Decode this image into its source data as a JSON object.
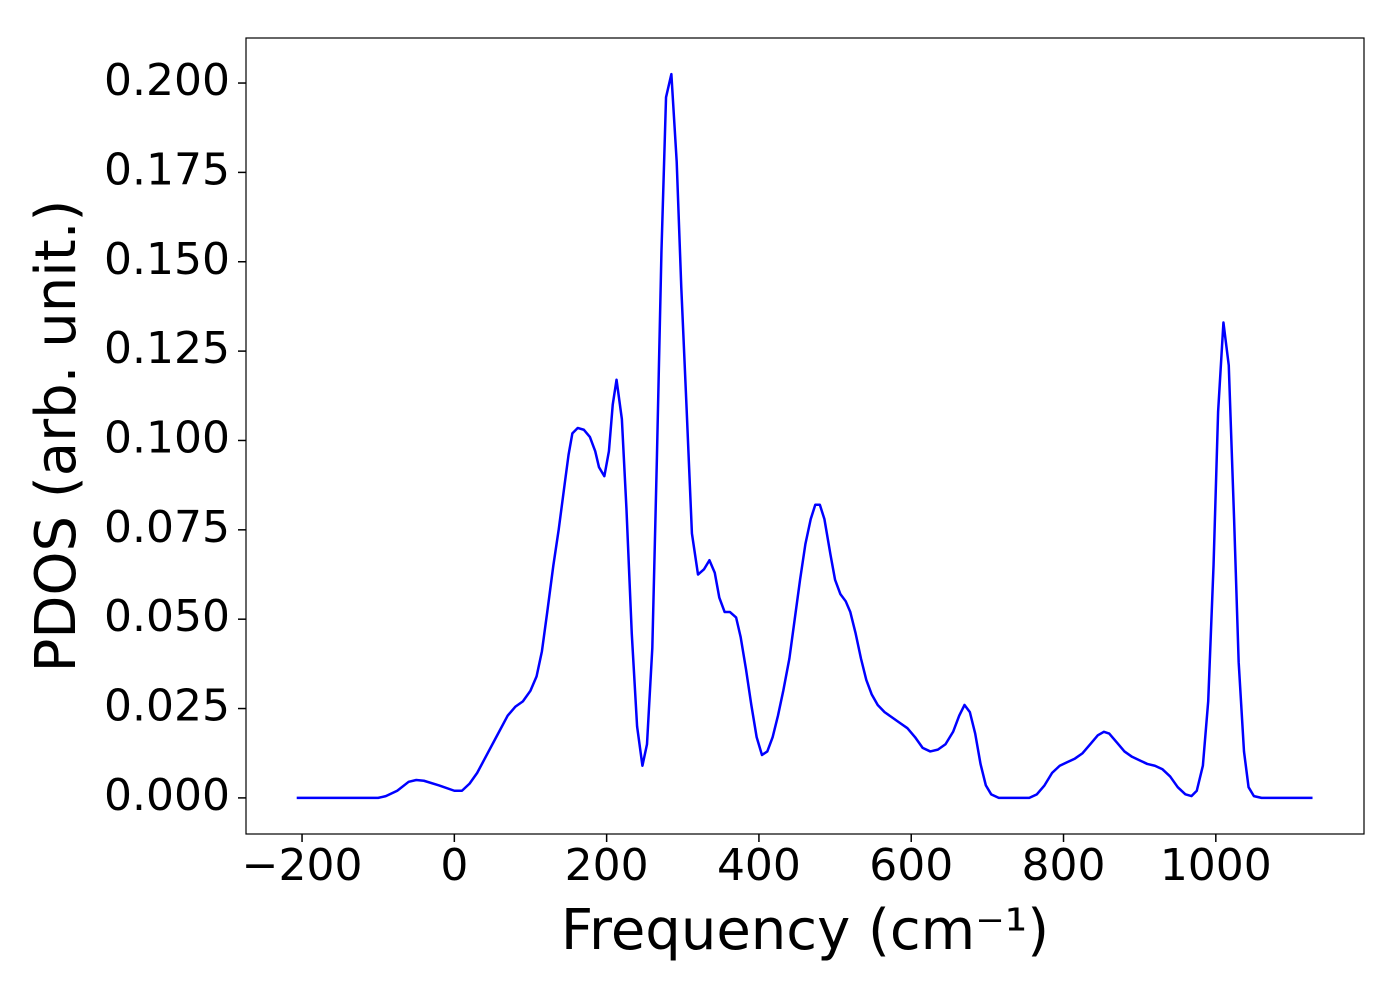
{
  "chart_data": {
    "type": "line",
    "xlabel": "Frequency (cm⁻¹)",
    "ylabel": "PDOS (arb. unit.)",
    "x": [
      -207,
      -100,
      -90,
      -75,
      -60,
      -50,
      -40,
      -20,
      0,
      10,
      20,
      30,
      40,
      55,
      70,
      80,
      90,
      100,
      108,
      115,
      122,
      130,
      137,
      145,
      150,
      155,
      162,
      170,
      178,
      185,
      190,
      197,
      203,
      208,
      213,
      220,
      226,
      233,
      240,
      247,
      253,
      260,
      266,
      272,
      278,
      285,
      292,
      298,
      305,
      312,
      320,
      328,
      335,
      342,
      348,
      355,
      362,
      370,
      376,
      383,
      390,
      397,
      404,
      411,
      418,
      425,
      432,
      440,
      447,
      454,
      461,
      468,
      474,
      480,
      486,
      494,
      500,
      507,
      514,
      520,
      527,
      534,
      541,
      548,
      556,
      565,
      575,
      585,
      595,
      605,
      615,
      625,
      635,
      645,
      655,
      663,
      670,
      677,
      684,
      691,
      698,
      705,
      715,
      755,
      765,
      775,
      785,
      795,
      805,
      815,
      825,
      835,
      845,
      853,
      860,
      870,
      880,
      890,
      900,
      910,
      920,
      930,
      940,
      950,
      960,
      968,
      975,
      983,
      990,
      997,
      1003,
      1010,
      1017,
      1024,
      1030,
      1037,
      1043,
      1050,
      1060,
      1127
    ],
    "series": [
      {
        "name": "PDOS",
        "color": "#0000ff",
        "values": [
          0,
          0,
          0.0005,
          0.002,
          0.0045,
          0.005,
          0.0048,
          0.0035,
          0.002,
          0.002,
          0.004,
          0.007,
          0.011,
          0.017,
          0.023,
          0.0255,
          0.027,
          0.03,
          0.034,
          0.041,
          0.052,
          0.065,
          0.075,
          0.088,
          0.096,
          0.102,
          0.1035,
          0.103,
          0.101,
          0.097,
          0.0925,
          0.09,
          0.097,
          0.11,
          0.117,
          0.106,
          0.081,
          0.046,
          0.02,
          0.009,
          0.015,
          0.042,
          0.095,
          0.153,
          0.196,
          0.2025,
          0.178,
          0.143,
          0.109,
          0.074,
          0.0625,
          0.064,
          0.0665,
          0.063,
          0.056,
          0.052,
          0.052,
          0.0505,
          0.045,
          0.036,
          0.026,
          0.017,
          0.012,
          0.013,
          0.017,
          0.023,
          0.03,
          0.039,
          0.05,
          0.061,
          0.071,
          0.078,
          0.082,
          0.082,
          0.078,
          0.068,
          0.061,
          0.057,
          0.055,
          0.052,
          0.046,
          0.039,
          0.033,
          0.029,
          0.026,
          0.024,
          0.0225,
          0.021,
          0.0195,
          0.017,
          0.014,
          0.013,
          0.0135,
          0.015,
          0.0185,
          0.023,
          0.026,
          0.024,
          0.018,
          0.0095,
          0.0035,
          0.001,
          0,
          0,
          0.001,
          0.0035,
          0.007,
          0.009,
          0.01,
          0.011,
          0.0125,
          0.015,
          0.0175,
          0.0185,
          0.018,
          0.0155,
          0.013,
          0.0115,
          0.0105,
          0.0095,
          0.009,
          0.008,
          0.006,
          0.003,
          0.001,
          0.0005,
          0.002,
          0.009,
          0.027,
          0.065,
          0.108,
          0.133,
          0.121,
          0.078,
          0.038,
          0.013,
          0.003,
          0.0005,
          0,
          0
        ]
      }
    ],
    "xlim": [
      -273.6,
      1194.6
    ],
    "ylim": [
      -0.0101,
      0.2126
    ],
    "xticks": [
      {
        "value": -200,
        "label": "−200"
      },
      0,
      200,
      400,
      600,
      800,
      1000
    ],
    "yticks": [
      {
        "value": 0,
        "label": "0.000"
      },
      {
        "value": 0.025,
        "label": "0.025"
      },
      {
        "value": 0.05,
        "label": "0.050"
      },
      {
        "value": 0.075,
        "label": "0.075"
      },
      {
        "value": 0.1,
        "label": "0.100"
      },
      {
        "value": 0.125,
        "label": "0.125"
      },
      {
        "value": 0.15,
        "label": "0.150"
      },
      {
        "value": 0.175,
        "label": "0.175"
      },
      {
        "value": 0.2,
        "label": "0.200"
      }
    ],
    "grid": false
  }
}
